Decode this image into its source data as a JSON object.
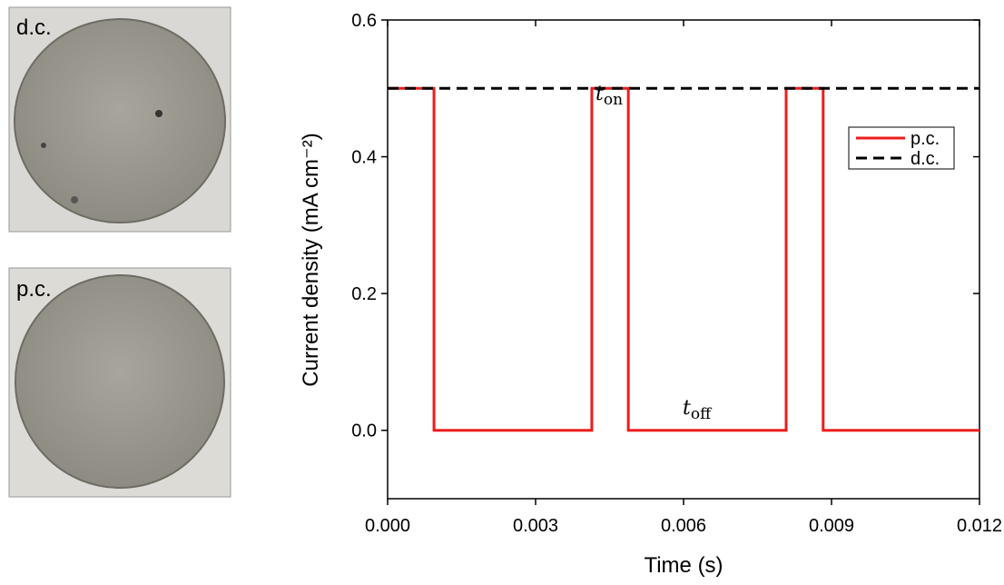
{
  "photos": [
    {
      "label": "d.c."
    },
    {
      "label": "p.c."
    }
  ],
  "chart_data": {
    "type": "line",
    "xlabel": "Time (s)",
    "ylabel": "Current density (mA cm⁻²)",
    "xlim": [
      0,
      0.012
    ],
    "ylim": [
      -0.1,
      0.6
    ],
    "xticks": [
      {
        "value": 0,
        "label": "0.000"
      },
      0.003,
      0.006,
      0.009,
      0.012
    ],
    "yticks": [
      {
        "value": 0,
        "label": "0.0"
      },
      0.2,
      0.4,
      0.6
    ],
    "legend": "upper right",
    "annotations": [
      {
        "text": "t",
        "sub": "on"
      },
      {
        "text": "t",
        "sub": "off"
      }
    ],
    "series": [
      {
        "name": "p.c.",
        "color": "#ee1c1c",
        "dash": false,
        "x": [
          0,
          0.00094,
          0.00094,
          0.00414,
          0.00414,
          0.00488,
          0.00488,
          0.00808,
          0.00808,
          0.00883,
          0.00883,
          0.012
        ],
        "values": [
          0.5,
          0.5,
          0,
          0,
          0.5,
          0.5,
          0,
          0,
          0.5,
          0.5,
          0,
          0
        ]
      },
      {
        "name": "d.c.",
        "color": "#000000",
        "dash": true,
        "x": [
          0,
          0.012
        ],
        "values": [
          0.5,
          0.5
        ]
      }
    ]
  }
}
